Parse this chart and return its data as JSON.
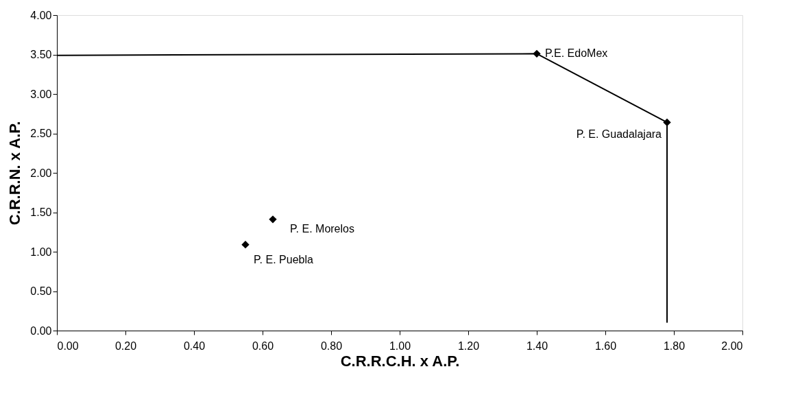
{
  "chart_data": {
    "type": "scatter",
    "xlabel": "C.R.R.C.H. x A.P.",
    "ylabel": "C.R.R.N. x A.P.",
    "xlim": [
      0,
      2
    ],
    "xticks": [
      {
        "value": 0,
        "label": "0.00"
      },
      {
        "value": 0.2,
        "label": "0.20"
      },
      {
        "value": 0.4,
        "label": "0.40"
      },
      {
        "value": 0.6,
        "label": "0.60"
      },
      {
        "value": 0.8,
        "label": "0.80"
      },
      {
        "value": 1,
        "label": "1.00"
      },
      {
        "value": 1.2,
        "label": "1.20"
      },
      {
        "value": 1.4,
        "label": "1.40"
      },
      {
        "value": 1.6,
        "label": "1.60"
      },
      {
        "value": 1.8,
        "label": "1.80"
      },
      {
        "value": 2,
        "label": "2.00"
      }
    ],
    "ylim": [
      0,
      4
    ],
    "yticks": [
      {
        "value": 0,
        "label": "0.00"
      },
      {
        "value": 0.5,
        "label": "0.50"
      },
      {
        "value": 1,
        "label": "1.00"
      },
      {
        "value": 1.5,
        "label": "1.50"
      },
      {
        "value": 2,
        "label": "2.00"
      },
      {
        "value": 2.5,
        "label": "2.50"
      },
      {
        "value": 3,
        "label": "3.00"
      },
      {
        "value": 3.5,
        "label": "3.50"
      },
      {
        "value": 4,
        "label": "4.00"
      }
    ],
    "grid": false,
    "series": [
      {
        "type": "line",
        "color": "#000000",
        "marker": "none",
        "x": [
          0,
          1.4,
          1.78,
          1.78
        ],
        "values": [
          3.49,
          3.51,
          2.64,
          0.1
        ]
      },
      {
        "type": "scatter",
        "color": "#000000",
        "marker": "diamond",
        "x": [
          1.4,
          1.78,
          0.63,
          0.55
        ],
        "values": [
          3.51,
          2.64,
          1.41,
          1.09
        ]
      }
    ],
    "annotations": [
      {
        "text": "P.E. EdoMex",
        "x": 1.4,
        "y": 3.51
      },
      {
        "text": "P. E. Guadalajara",
        "x": 1.78,
        "y": 2.64
      },
      {
        "text": "P. E. Morelos",
        "x": 0.63,
        "y": 1.41
      },
      {
        "text": "P. E. Puebla",
        "x": 0.55,
        "y": 1.09
      }
    ]
  }
}
